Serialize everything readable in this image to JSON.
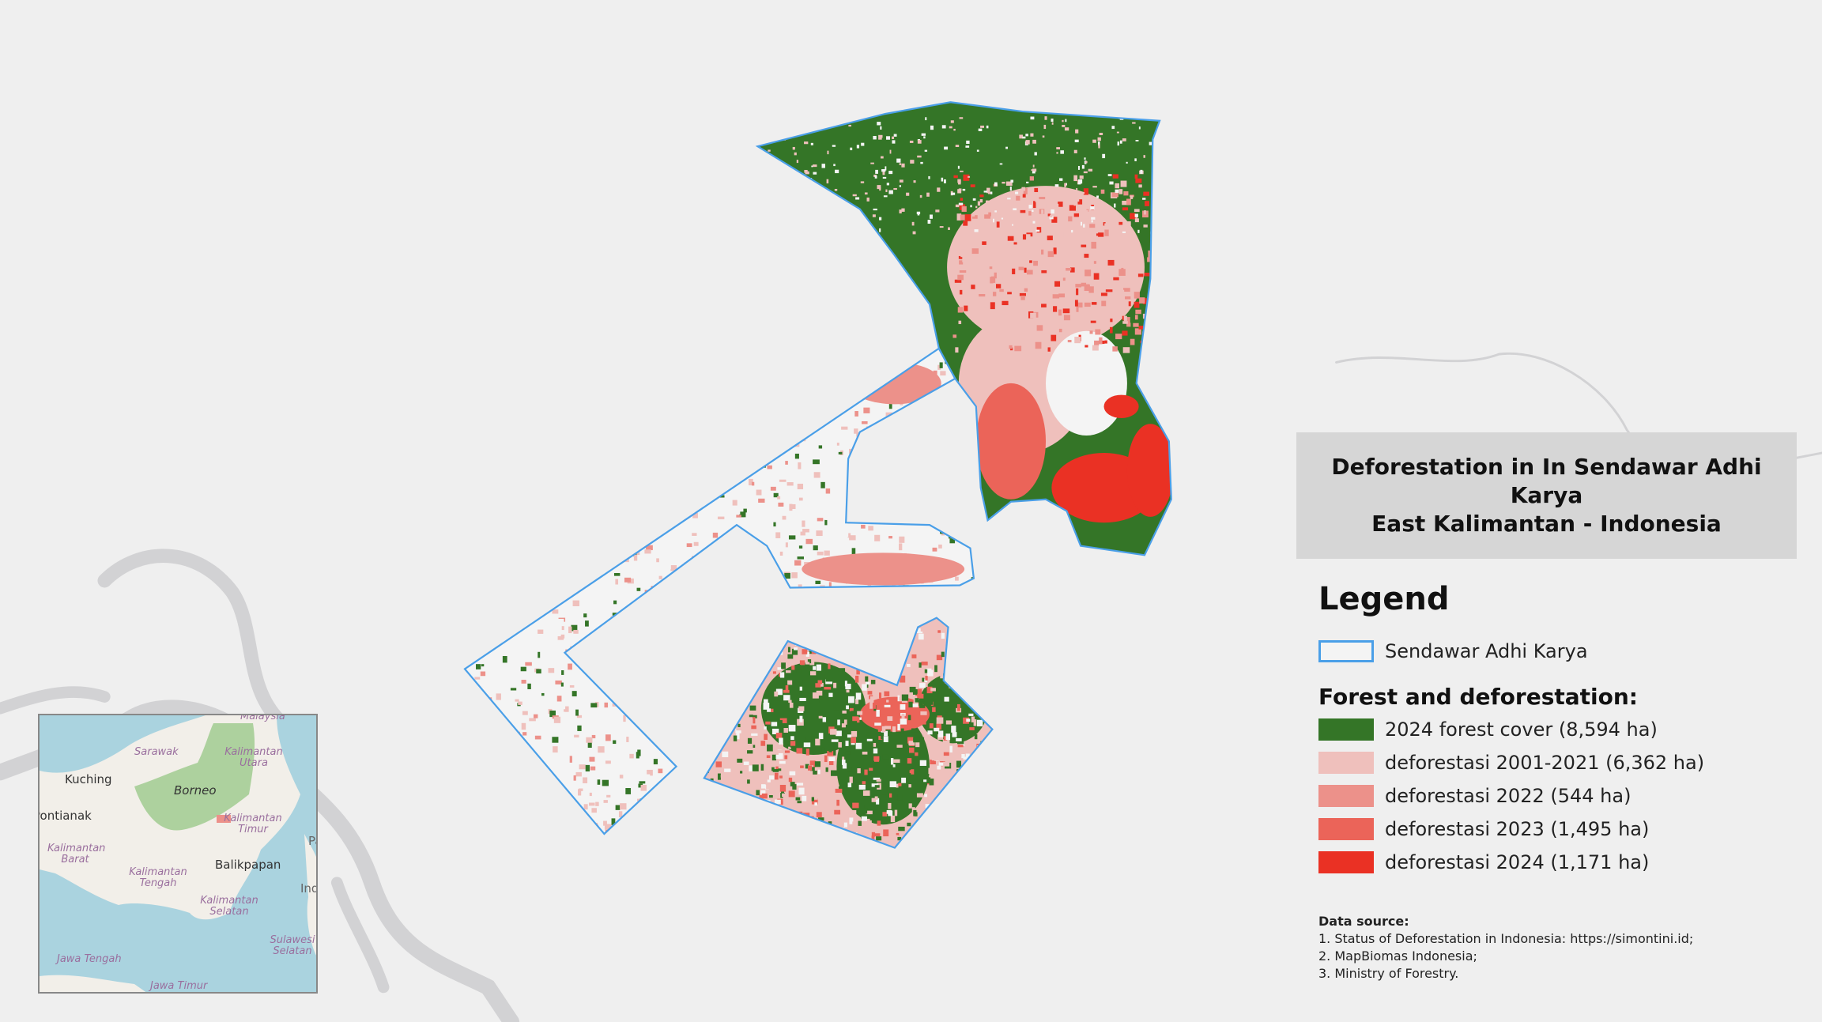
{
  "title": {
    "line1": "Deforestation in In Sendawar Adhi Karya",
    "line2": "East Kalimantan - Indonesia"
  },
  "legend": {
    "heading": "Legend",
    "boundary": {
      "label": "Sendawar Adhi Karya",
      "color": "#4a9fe8"
    },
    "section_title": "Forest and deforestation:",
    "items": [
      {
        "label": "2024 forest cover (8,594 ha)",
        "color": "#347527"
      },
      {
        "label": "deforestasi 2001-2021 (6,362 ha)",
        "color": "#efc0bc"
      },
      {
        "label": "deforestasi 2022 (544 ha)",
        "color": "#ec918a"
      },
      {
        "label": "deforestasi 2023 (1,495 ha)",
        "color": "#eb6459"
      },
      {
        "label": "deforestasi 2024 (1,171 ha)",
        "color": "#ea3124"
      }
    ]
  },
  "data_source": {
    "heading": "Data source:",
    "lines": [
      "1. Status of Deforestation in Indonesia: https://simontini.id;",
      "2. MapBiomas Indonesia;",
      "3. Ministry of Forestry."
    ]
  },
  "inset_map": {
    "labels": {
      "malaysia": "Malaysia",
      "sarawak": "Sarawak",
      "kaltara": "Kalimantan Utara",
      "kuching": "Kuching",
      "borneo": "Borneo",
      "pontianak": "Pontianak",
      "kaltim": "Kalimantan Timur",
      "kalbar": "Kalimantan Barat",
      "balikpapan": "Balikpapan",
      "kalteng": "Kalimantan Tengah",
      "kalsel": "Kalimantan Selatan",
      "sulsel": "Sulawesi Selatan",
      "jateng": "Jawa Tengah",
      "jatim": "Jawa Timur",
      "indo": "Ind",
      "pa": "Pa"
    },
    "location_marker_color": "#ec918a"
  }
}
